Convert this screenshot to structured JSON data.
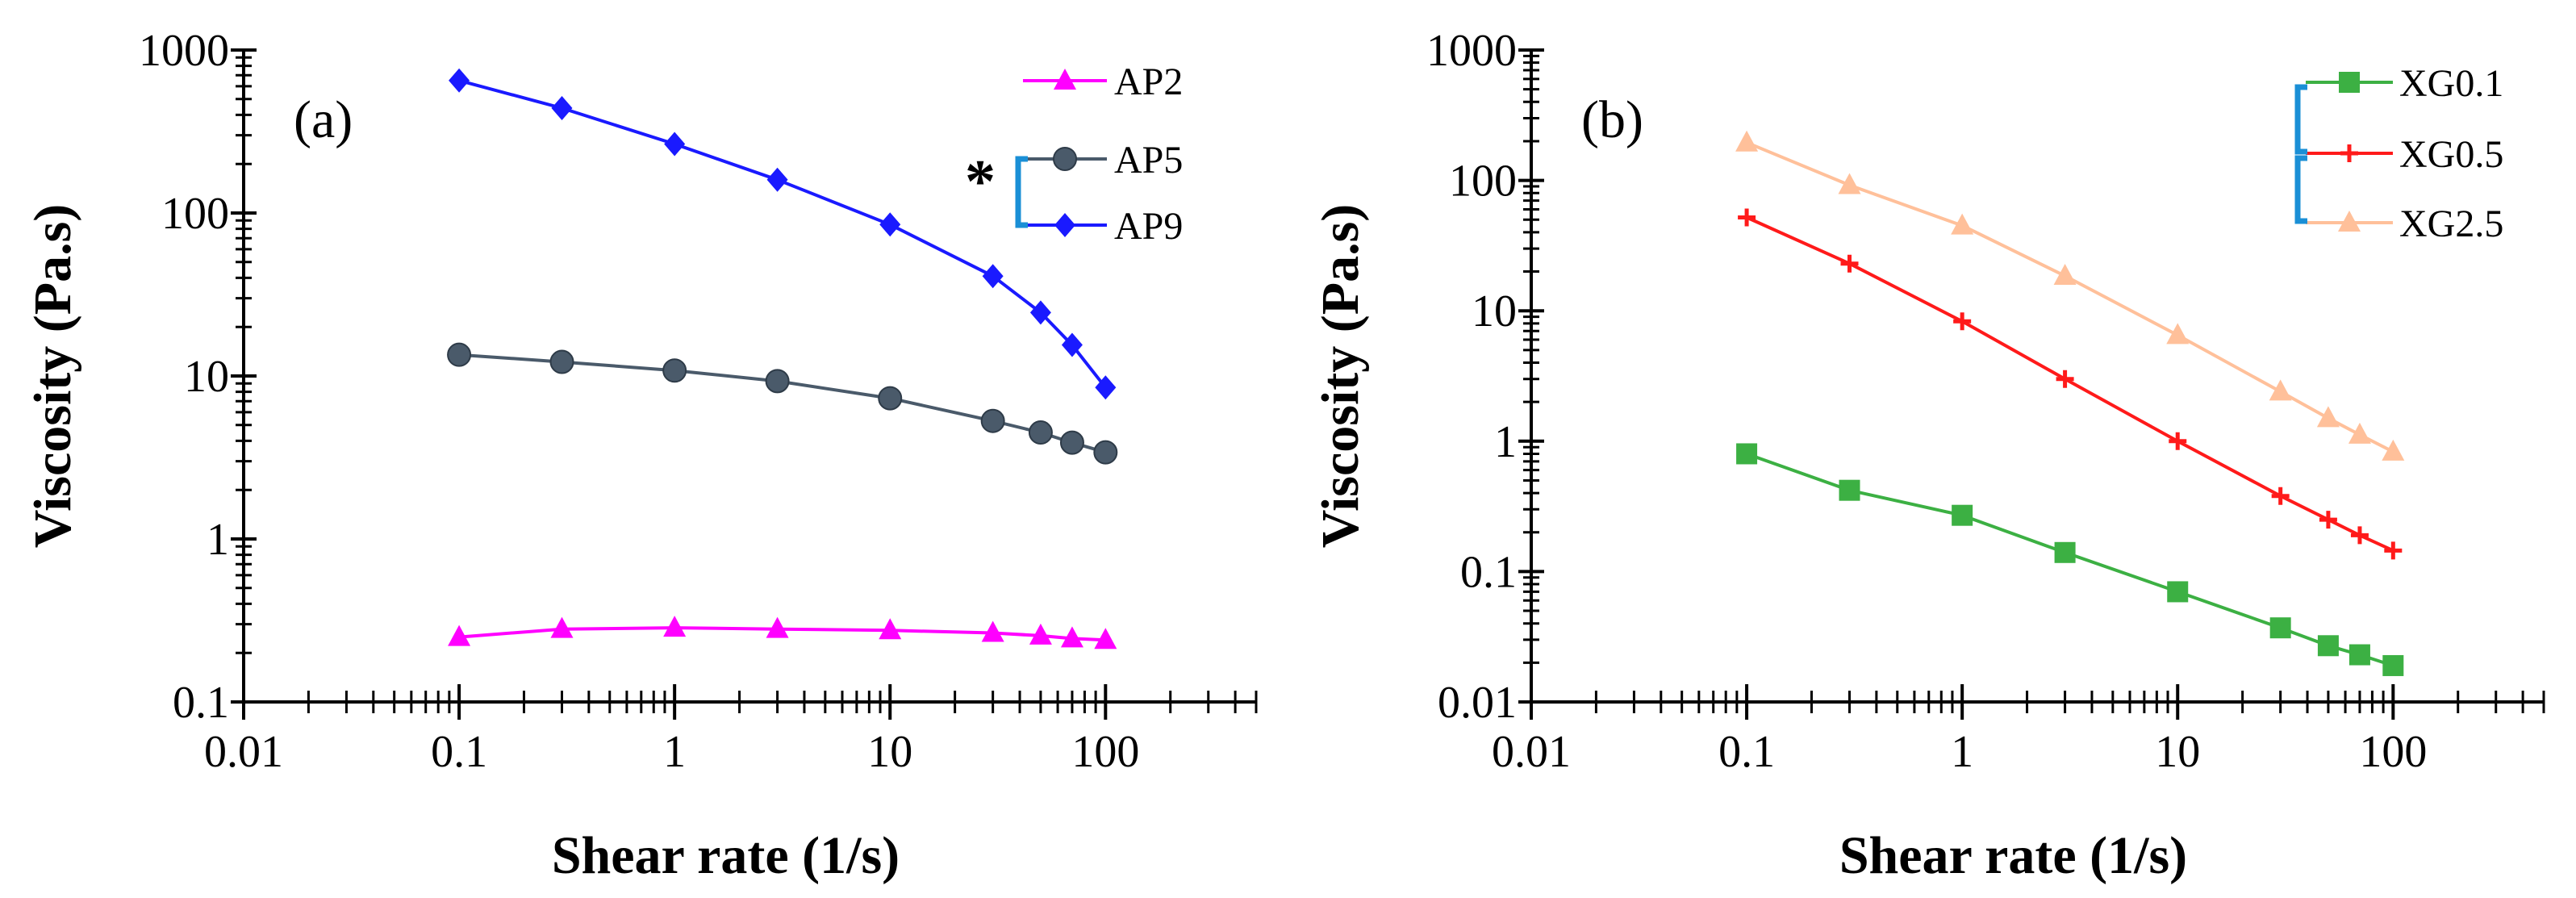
{
  "figure": {
    "asterisk": "*"
  },
  "chart_data": [
    {
      "type": "line",
      "panel_label": "(a)",
      "xlabel": "Shear rate (1/s)",
      "ylabel": "Viscosity (Pa.s)",
      "x_scale": "log",
      "y_scale": "log",
      "xlim": [
        0.01,
        500
      ],
      "ylim": [
        0.1,
        1000
      ],
      "x_ticks": [
        "0.01",
        "0.1",
        "1",
        "10",
        "100"
      ],
      "y_ticks": [
        "0.1",
        "1",
        "10",
        "100",
        "1000"
      ],
      "grid": false,
      "legend_position": "top-right",
      "significance_marker": "*",
      "x": [
        0.1,
        0.3,
        1,
        3,
        10,
        30,
        50,
        70,
        100
      ],
      "series": [
        {
          "name": "AP2",
          "color": "#ff00ff",
          "marker": "triangle",
          "values": [
            0.25,
            0.28,
            0.285,
            0.28,
            0.275,
            0.265,
            0.255,
            0.245,
            0.24
          ]
        },
        {
          "name": "AP5",
          "color": "#4a5a6a",
          "marker": "circle",
          "values": [
            13.5,
            12.2,
            10.8,
            9.3,
            7.3,
            5.3,
            4.5,
            3.9,
            3.4
          ]
        },
        {
          "name": "AP9",
          "color": "#1a1aff",
          "marker": "diamond",
          "values": [
            650,
            440,
            265,
            160,
            85,
            41,
            24.5,
            15.5,
            8.5
          ]
        }
      ]
    },
    {
      "type": "line",
      "panel_label": "(b)",
      "xlabel": "Shear rate (1/s)",
      "ylabel": "Viscosity (Pa.s)",
      "x_scale": "log",
      "y_scale": "log",
      "xlim": [
        0.01,
        500
      ],
      "ylim": [
        0.01,
        1000
      ],
      "x_ticks": [
        "0.01",
        "0.1",
        "1",
        "10",
        "100"
      ],
      "y_ticks": [
        "0.01",
        "0.1",
        "1",
        "10",
        "100",
        "1000"
      ],
      "grid": false,
      "legend_position": "top-right",
      "x": [
        0.1,
        0.3,
        1,
        3,
        10,
        30,
        50,
        70,
        100
      ],
      "series": [
        {
          "name": "XG0.1",
          "color": "#3cb043",
          "marker": "square",
          "values": [
            0.8,
            0.42,
            0.27,
            0.14,
            0.07,
            0.037,
            0.027,
            0.023,
            0.019
          ]
        },
        {
          "name": "XG0.5",
          "color": "#ff1a1a",
          "marker": "plus",
          "values": [
            52,
            23,
            8.3,
            3.0,
            1.0,
            0.38,
            0.25,
            0.19,
            0.145
          ]
        },
        {
          "name": "XG2.5",
          "color": "#ffc09a",
          "marker": "triangle",
          "values": [
            195,
            92,
            45,
            18.5,
            6.5,
            2.4,
            1.5,
            1.12,
            0.83
          ]
        }
      ]
    }
  ]
}
